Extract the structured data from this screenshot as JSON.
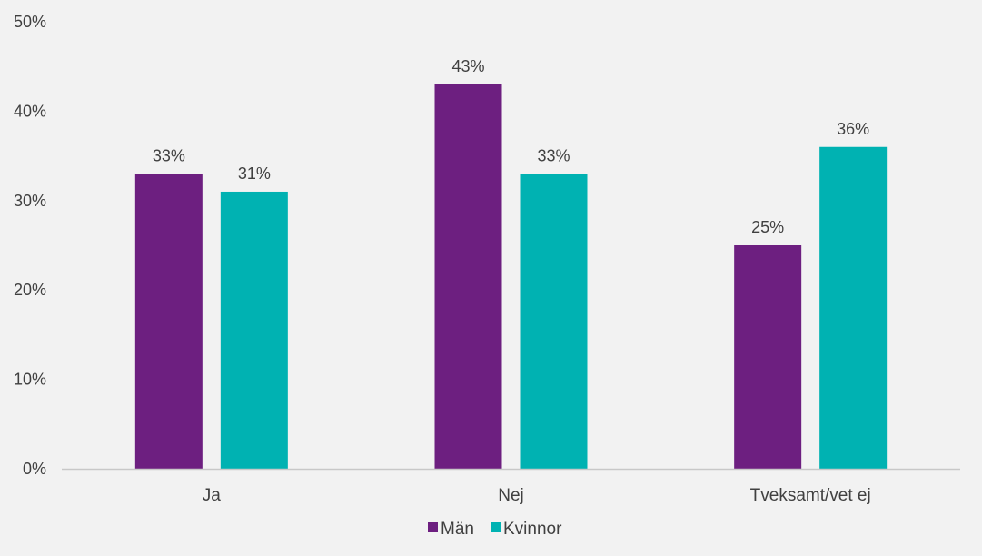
{
  "chart_data": {
    "type": "bar",
    "title": "",
    "xlabel": "",
    "ylabel": "",
    "categories": [
      "Ja",
      "Nej",
      "Tveksamt/vet ej"
    ],
    "series": [
      {
        "name": "Män",
        "values": [
          33,
          43,
          25
        ],
        "color": "#6d1f80"
      },
      {
        "name": "Kvinnor",
        "values": [
          31,
          33,
          36
        ],
        "color": "#00b2b2"
      }
    ],
    "ylim": [
      0,
      50
    ],
    "yticks": [
      0,
      10,
      20,
      30,
      40,
      50
    ],
    "ytick_labels": [
      "0%",
      "10%",
      "20%",
      "30%",
      "40%",
      "50%"
    ],
    "data_labels": [
      [
        "33%",
        "43%",
        "25%"
      ],
      [
        "31%",
        "33%",
        "36%"
      ]
    ],
    "grid": false,
    "legend_position": "bottom",
    "background_color": "#f2f2f2",
    "axis_color": "#c8c8c8"
  }
}
